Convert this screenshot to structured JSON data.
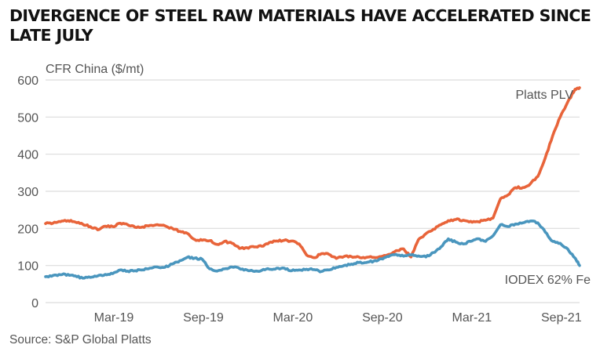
{
  "title": "DIVERGENCE OF STEEL RAW MATERIALS HAVE ACCELERATED SINCE LATE JULY",
  "source": "Source: S&P Global Platts",
  "chart_data": {
    "type": "line",
    "title": "DIVERGENCE OF STEEL RAW MATERIALS HAVE ACCELERATED SINCE LATE JULY",
    "ylabel": "CFR China ($/mt)",
    "xlabel": "",
    "ylim": [
      0,
      600
    ],
    "yticks": [
      0,
      100,
      200,
      300,
      400,
      500,
      600
    ],
    "xticks": [
      "Mar-19",
      "Sep-19",
      "Mar-20",
      "Sep-20",
      "Mar-21",
      "Sep-21"
    ],
    "xtick_months": [
      5,
      11,
      17,
      23,
      29,
      35
    ],
    "xrange_months": [
      0,
      35.8
    ],
    "grid": true,
    "legend": "direct labels",
    "colors": {
      "Platts PLV": "#e8643a",
      "IODEX 62% Fe": "#4a96be"
    },
    "x": [
      0,
      0.5,
      1,
      1.5,
      2,
      2.5,
      3,
      3.5,
      4,
      4.5,
      5,
      5.5,
      6,
      6.5,
      7,
      7.5,
      8,
      8.5,
      9,
      9.5,
      10,
      10.5,
      11,
      11.5,
      12,
      12.5,
      13,
      13.5,
      14,
      14.5,
      15,
      15.5,
      16,
      16.5,
      17,
      17.5,
      18,
      18.5,
      19,
      19.5,
      20,
      20.5,
      21,
      21.5,
      22,
      22.5,
      23,
      23.5,
      24,
      24.5,
      25,
      25.5,
      26,
      26.5,
      27,
      27.5,
      28,
      28.5,
      29,
      29.5,
      30,
      30.5,
      31,
      31.5,
      32,
      32.5,
      33,
      33.5,
      34,
      34.5,
      35,
      35.5,
      35.8
    ],
    "series": [
      {
        "name": "Platts PLV",
        "values": [
          213,
          214,
          218,
          221,
          217,
          211,
          205,
          196,
          206,
          205,
          214,
          210,
          203,
          204,
          208,
          210,
          207,
          200,
          192,
          187,
          170,
          168,
          167,
          157,
          165,
          160,
          146,
          148,
          150,
          152,
          162,
          166,
          168,
          166,
          158,
          128,
          121,
          132,
          130,
          119,
          124,
          124,
          123,
          122,
          122,
          124,
          130,
          140,
          145,
          123,
          170,
          186,
          198,
          210,
          221,
          224,
          222,
          219,
          218,
          222,
          228,
          280,
          290,
          310,
          310,
          320,
          340,
          390,
          450,
          500,
          540,
          575,
          579
        ]
      },
      {
        "name": "IODEX 62% Fe",
        "values": [
          70,
          73,
          75,
          76,
          72,
          66,
          68,
          72,
          76,
          78,
          88,
          85,
          86,
          88,
          93,
          96,
          95,
          104,
          113,
          122,
          120,
          117,
          91,
          85,
          91,
          96,
          92,
          88,
          84,
          87,
          90,
          93,
          93,
          86,
          88,
          90,
          89,
          84,
          88,
          95,
          100,
          104,
          108,
          108,
          112,
          118,
          124,
          130,
          125,
          128,
          126,
          123,
          135,
          150,
          172,
          163,
          158,
          165,
          172,
          165,
          180,
          210,
          205,
          212,
          215,
          220,
          215,
          190,
          165,
          160,
          145,
          120,
          100
        ]
      }
    ]
  }
}
